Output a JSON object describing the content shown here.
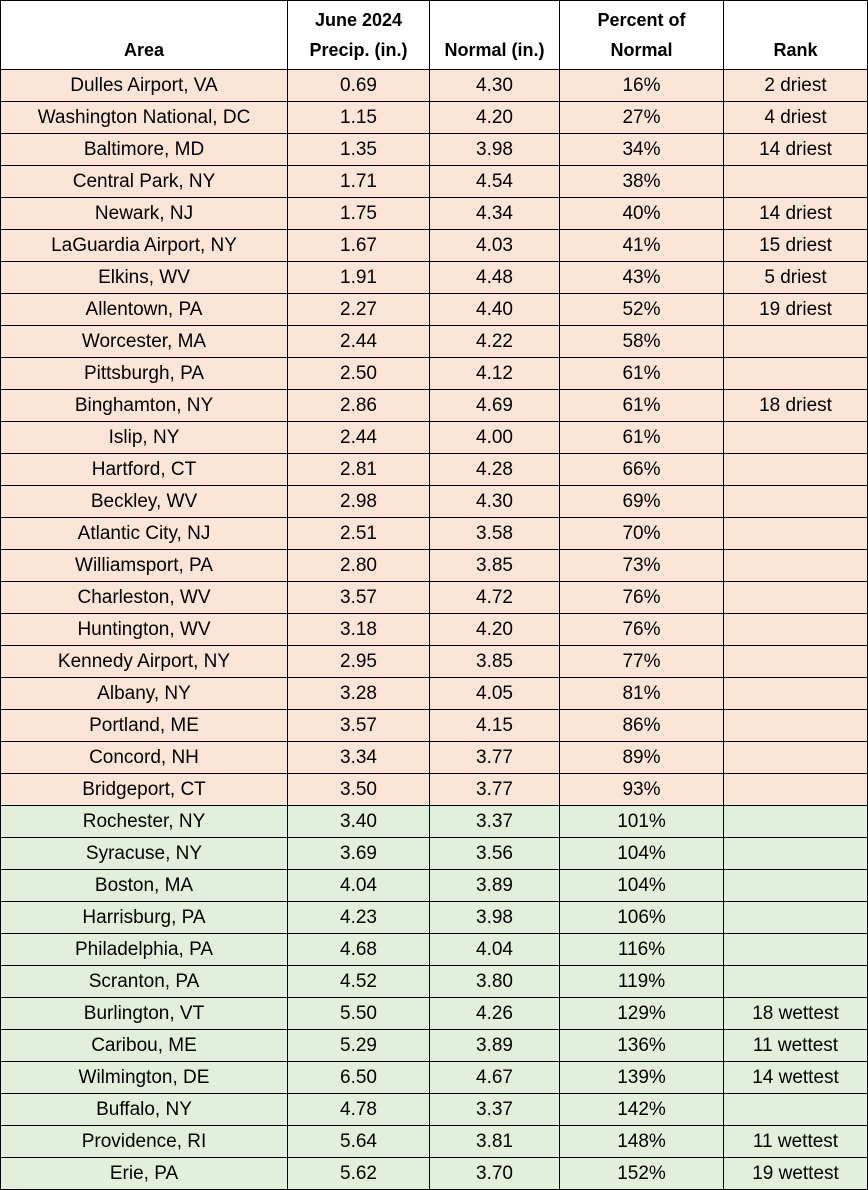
{
  "table": {
    "header": [
      [
        "Area"
      ],
      [
        "June 2024",
        "Precip. (in.)"
      ],
      [
        "Normal (in.)"
      ],
      [
        "Percent of",
        "Normal"
      ],
      [
        "Rank"
      ]
    ],
    "rows": [
      {
        "cells": [
          "Dulles Airport, VA",
          "0.69",
          "4.30",
          "16%",
          "2 driest"
        ],
        "color": "#fbe5d6"
      },
      {
        "cells": [
          "Washington National, DC",
          "1.15",
          "4.20",
          "27%",
          "4 driest"
        ],
        "color": "#fbe5d6"
      },
      {
        "cells": [
          "Baltimore, MD",
          "1.35",
          "3.98",
          "34%",
          "14 driest"
        ],
        "color": "#fbe5d6"
      },
      {
        "cells": [
          "Central Park, NY",
          "1.71",
          "4.54",
          "38%",
          null
        ],
        "color": "#fbe5d6"
      },
      {
        "cells": [
          "Newark, NJ",
          "1.75",
          "4.34",
          "40%",
          "14 driest"
        ],
        "color": "#fbe5d6"
      },
      {
        "cells": [
          "LaGuardia Airport, NY",
          "1.67",
          "4.03",
          "41%",
          "15 driest"
        ],
        "color": "#fbe5d6"
      },
      {
        "cells": [
          "Elkins, WV",
          "1.91",
          "4.48",
          "43%",
          "5 driest"
        ],
        "color": "#fbe5d6"
      },
      {
        "cells": [
          "Allentown, PA",
          "2.27",
          "4.40",
          "52%",
          "19 driest"
        ],
        "color": "#fbe5d6"
      },
      {
        "cells": [
          "Worcester, MA",
          "2.44",
          "4.22",
          "58%",
          null
        ],
        "color": "#fbe5d6"
      },
      {
        "cells": [
          "Pittsburgh, PA",
          "2.50",
          "4.12",
          "61%",
          null
        ],
        "color": "#fbe5d6"
      },
      {
        "cells": [
          "Binghamton, NY",
          "2.86",
          "4.69",
          "61%",
          "18 driest"
        ],
        "color": "#fbe5d6"
      },
      {
        "cells": [
          "Islip, NY",
          "2.44",
          "4.00",
          "61%",
          null
        ],
        "color": "#fbe5d6"
      },
      {
        "cells": [
          "Hartford, CT",
          "2.81",
          "4.28",
          "66%",
          null
        ],
        "color": "#fbe5d6"
      },
      {
        "cells": [
          "Beckley, WV",
          "2.98",
          "4.30",
          "69%",
          null
        ],
        "color": "#fbe5d6"
      },
      {
        "cells": [
          "Atlantic City, NJ",
          "2.51",
          "3.58",
          "70%",
          null
        ],
        "color": "#fbe5d6"
      },
      {
        "cells": [
          "Williamsport, PA",
          "2.80",
          "3.85",
          "73%",
          null
        ],
        "color": "#fbe5d6"
      },
      {
        "cells": [
          "Charleston, WV",
          "3.57",
          "4.72",
          "76%",
          null
        ],
        "color": "#fbe5d6"
      },
      {
        "cells": [
          "Huntington, WV",
          "3.18",
          "4.20",
          "76%",
          null
        ],
        "color": "#fbe5d6"
      },
      {
        "cells": [
          "Kennedy Airport, NY",
          "2.95",
          "3.85",
          "77%",
          null
        ],
        "color": "#fbe5d6"
      },
      {
        "cells": [
          "Albany, NY",
          "3.28",
          "4.05",
          "81%",
          null
        ],
        "color": "#fbe5d6"
      },
      {
        "cells": [
          "Portland, ME",
          "3.57",
          "4.15",
          "86%",
          null
        ],
        "color": "#fbe5d6"
      },
      {
        "cells": [
          "Concord, NH",
          "3.34",
          "3.77",
          "89%",
          null
        ],
        "color": "#fbe5d6"
      },
      {
        "cells": [
          "Bridgeport, CT",
          "3.50",
          "3.77",
          "93%",
          null
        ],
        "color": "#fbe5d6"
      },
      {
        "cells": [
          "Rochester, NY",
          "3.40",
          "3.37",
          "101%",
          null
        ],
        "color": "#e2efda"
      },
      {
        "cells": [
          "Syracuse, NY",
          "3.69",
          "3.56",
          "104%",
          null
        ],
        "color": "#e2efda"
      },
      {
        "cells": [
          "Boston, MA",
          "4.04",
          "3.89",
          "104%",
          null
        ],
        "color": "#e2efda"
      },
      {
        "cells": [
          "Harrisburg, PA",
          "4.23",
          "3.98",
          "106%",
          null
        ],
        "color": "#e2efda"
      },
      {
        "cells": [
          "Philadelphia, PA",
          "4.68",
          "4.04",
          "116%",
          null
        ],
        "color": "#e2efda"
      },
      {
        "cells": [
          "Scranton, PA",
          "4.52",
          "3.80",
          "119%",
          null
        ],
        "color": "#e2efda"
      },
      {
        "cells": [
          "Burlington, VT",
          "5.50",
          "4.26",
          "129%",
          "18 wettest"
        ],
        "color": "#e2efda"
      },
      {
        "cells": [
          "Caribou, ME",
          "5.29",
          "3.89",
          "136%",
          "11 wettest"
        ],
        "color": "#e2efda"
      },
      {
        "cells": [
          "Wilmington, DE",
          "6.50",
          "4.67",
          "139%",
          "14 wettest"
        ],
        "color": "#e2efda"
      },
      {
        "cells": [
          "Buffalo, NY",
          "4.78",
          "3.37",
          "142%",
          null
        ],
        "color": "#e2efda"
      },
      {
        "cells": [
          "Providence, RI",
          "5.64",
          "3.81",
          "148%",
          "11 wettest"
        ],
        "color": "#e2efda"
      },
      {
        "cells": [
          "Erie, PA",
          "5.62",
          "3.70",
          "152%",
          "19 wettest"
        ],
        "color": "#e2efda"
      }
    ]
  }
}
